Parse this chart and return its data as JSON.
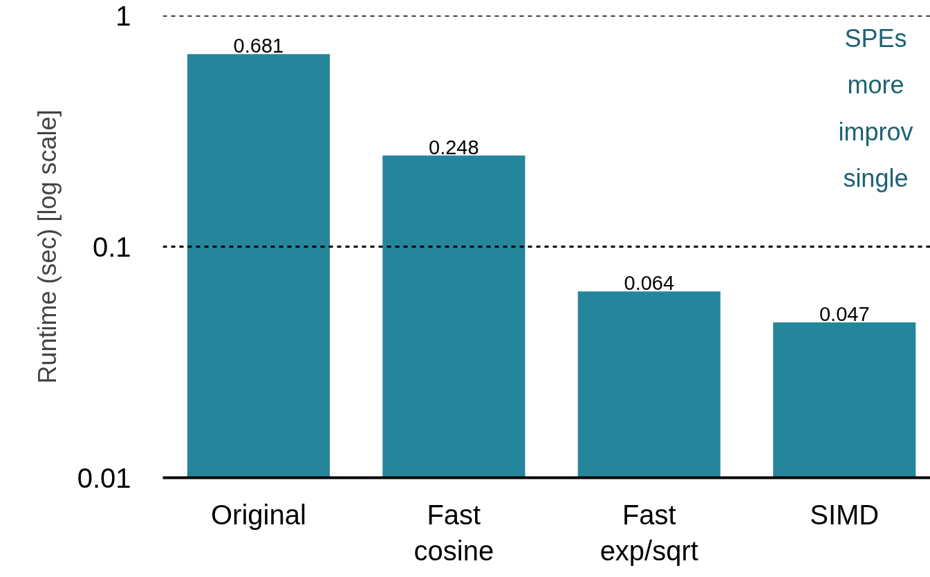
{
  "chart_data": {
    "type": "bar",
    "ylabel": "Runtime (sec) [log scale]",
    "categories": [
      "Original",
      "Fast\ncosine",
      "Fast\nexp/sqrt",
      "SIMD"
    ],
    "values": [
      0.681,
      0.248,
      0.064,
      0.047
    ],
    "color": "#25869b",
    "log": true,
    "ylim": [
      0.01,
      1
    ],
    "yticks": [
      0.01,
      0.1,
      1
    ],
    "grid": "y",
    "data_labels": true,
    "annotations": [
      "SPEs\nmore\nimprov\nsingle"
    ]
  }
}
